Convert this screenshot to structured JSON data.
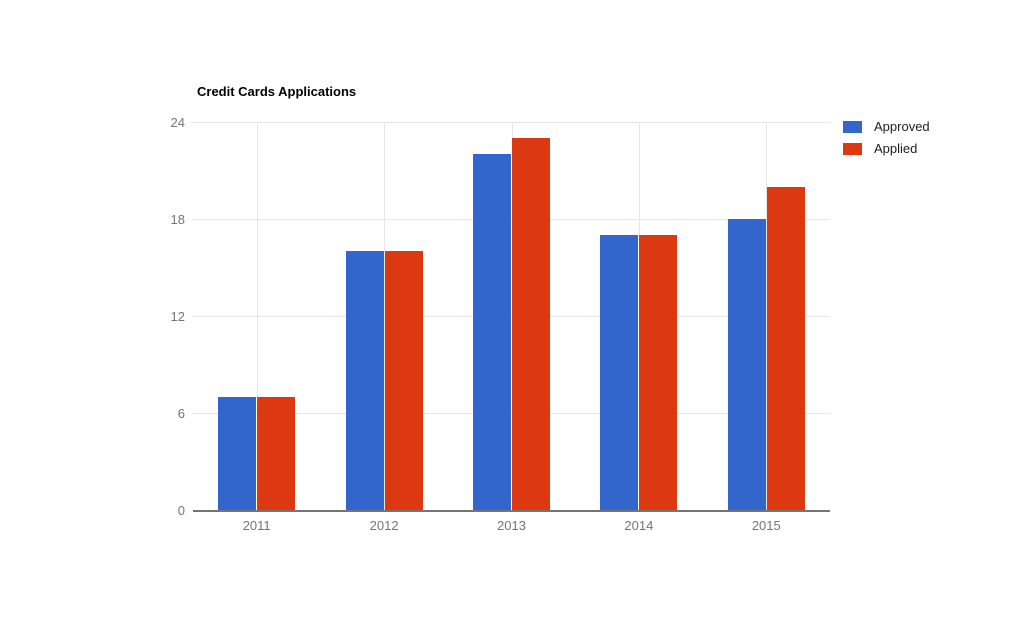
{
  "chart_data": {
    "type": "bar",
    "title": "Credit Cards Applications",
    "categories": [
      "2011",
      "2012",
      "2013",
      "2014",
      "2015"
    ],
    "series": [
      {
        "name": "Approved",
        "color": "#3366cc",
        "values": [
          7,
          16,
          22,
          17,
          18
        ]
      },
      {
        "name": "Applied",
        "color": "#dc3912",
        "values": [
          7,
          16,
          23,
          17,
          20
        ]
      }
    ],
    "xlabel": "",
    "ylabel": "",
    "ylim": [
      0,
      24
    ],
    "yticks": [
      0,
      6,
      12,
      18,
      24
    ],
    "grid": true,
    "legend_position": "right-top"
  },
  "colors": {
    "background": "#ffffff",
    "grid": "#e6e6e6",
    "axis_line": "#757575",
    "tick_label": "#757575",
    "title_text": "#000000",
    "legend_text": "#222222"
  }
}
